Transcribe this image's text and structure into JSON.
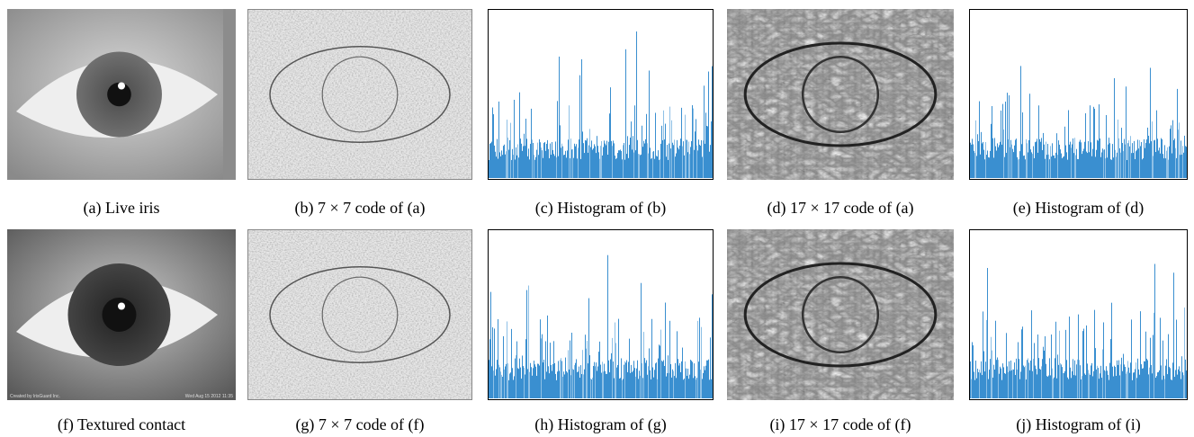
{
  "figure": {
    "panels": [
      {
        "caption": "(a) Live iris"
      },
      {
        "caption": "(b) 7 × 7 code of (a)"
      },
      {
        "caption": "(c) Histogram of (b)"
      },
      {
        "caption": "(d) 17 × 17 code of (a)"
      },
      {
        "caption": "(e) Histogram of (d)"
      },
      {
        "caption": "(f) Textured contact",
        "overlay_left": "Created by IrisGuard Inc.",
        "overlay_right": "Wed Aug 15 2012 11:35"
      },
      {
        "caption": "(g) 7 × 7 code of (f)"
      },
      {
        "caption": "(h) Histogram of (g)"
      },
      {
        "caption": "(i) 17 × 17 code of (f)"
      },
      {
        "caption": "(j) Histogram of (i)"
      }
    ]
  }
}
